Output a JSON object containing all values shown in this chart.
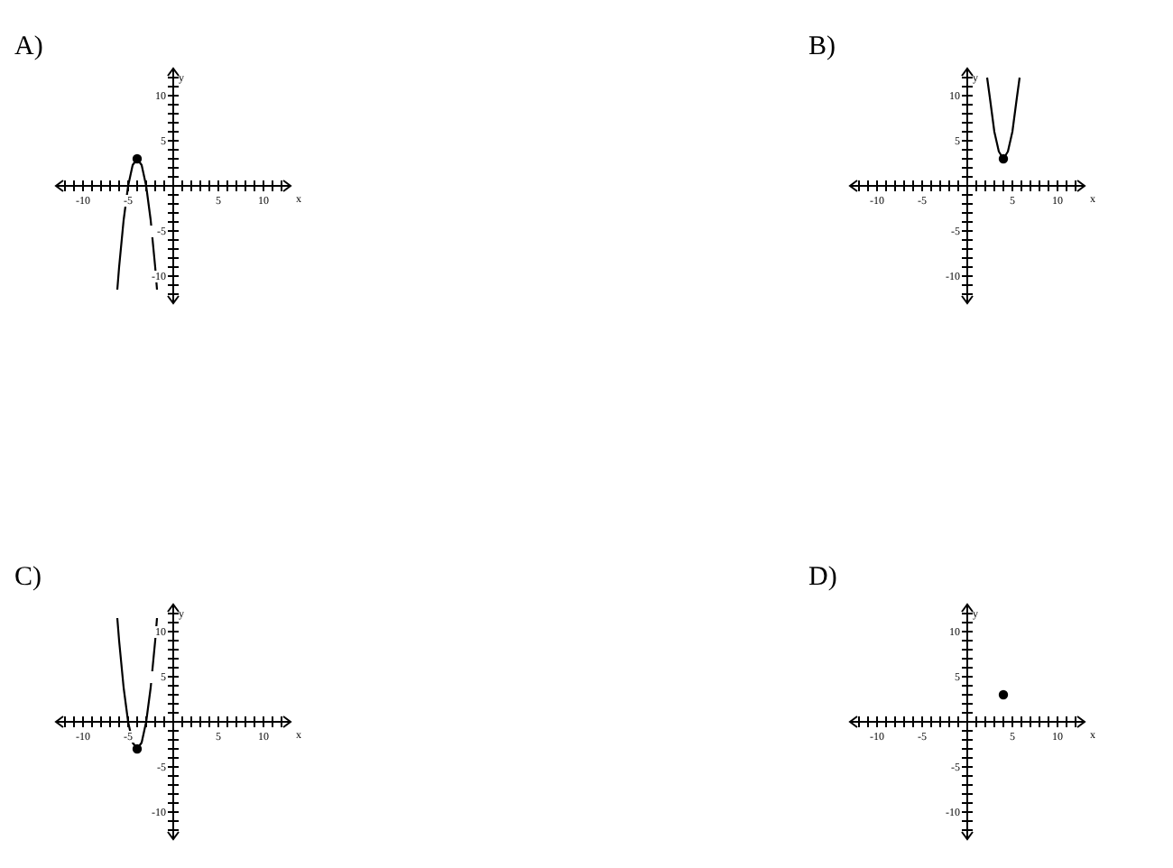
{
  "chart_data": [
    {
      "type": "line",
      "title": "A)",
      "xlabel": "x",
      "ylabel": "y",
      "xlim": [
        -13,
        13
      ],
      "ylim": [
        -13,
        13
      ],
      "xticks": [
        {
          "value": -12,
          "label": null
        },
        {
          "value": -11,
          "label": null
        },
        -10,
        {
          "value": -9,
          "label": null
        },
        {
          "value": -8,
          "label": null
        },
        {
          "value": -7,
          "label": null
        },
        {
          "value": -6,
          "label": null
        },
        -5,
        {
          "value": -4,
          "label": null
        },
        {
          "value": -3,
          "label": null
        },
        {
          "value": -2,
          "label": null
        },
        {
          "value": -1,
          "label": null
        },
        {
          "value": 1,
          "label": null
        },
        {
          "value": 2,
          "label": null
        },
        {
          "value": 3,
          "label": null
        },
        {
          "value": 4,
          "label": null
        },
        5,
        {
          "value": 6,
          "label": null
        },
        {
          "value": 7,
          "label": null
        },
        {
          "value": 8,
          "label": null
        },
        {
          "value": 9,
          "label": null
        },
        10,
        {
          "value": 11,
          "label": null
        },
        {
          "value": 12,
          "label": null
        }
      ],
      "yticks": [
        {
          "value": -12,
          "label": null
        },
        {
          "value": -11,
          "label": null
        },
        -10,
        {
          "value": -9,
          "label": null
        },
        {
          "value": -8,
          "label": null
        },
        {
          "value": -7,
          "label": null
        },
        {
          "value": -6,
          "label": null
        },
        -5,
        {
          "value": -4,
          "label": null
        },
        {
          "value": -3,
          "label": null
        },
        {
          "value": -2,
          "label": null
        },
        {
          "value": -1,
          "label": null
        },
        {
          "value": 1,
          "label": null
        },
        {
          "value": 2,
          "label": null
        },
        {
          "value": 3,
          "label": null
        },
        {
          "value": 4,
          "label": null
        },
        5,
        {
          "value": 6,
          "label": null
        },
        {
          "value": 7,
          "label": null
        },
        {
          "value": 8,
          "label": null
        },
        {
          "value": 9,
          "label": null
        },
        10,
        {
          "value": 11,
          "label": null
        },
        {
          "value": 12,
          "label": null
        }
      ],
      "series": [
        {
          "marker": "none",
          "color": "#000000",
          "x": [
            -6.2,
            -6,
            -5.5,
            -5,
            -4.5,
            -4,
            -3.5,
            -3,
            -2.5,
            -2,
            -1.8
          ],
          "values": [
            -11.5,
            -9,
            -3.8,
            0,
            2.3,
            3,
            2.3,
            0,
            -3.8,
            -9,
            -11.5
          ]
        },
        {
          "type": "scatter",
          "marker": "circle",
          "color": "#000000",
          "x": [
            -4
          ],
          "values": [
            3
          ]
        }
      ]
    },
    {
      "type": "line",
      "title": "B)",
      "xlabel": "x",
      "ylabel": "y",
      "xlim": [
        -13,
        13
      ],
      "ylim": [
        -13,
        13
      ],
      "xticks": [
        {
          "value": -12,
          "label": null
        },
        {
          "value": -11,
          "label": null
        },
        -10,
        {
          "value": -9,
          "label": null
        },
        {
          "value": -8,
          "label": null
        },
        {
          "value": -7,
          "label": null
        },
        {
          "value": -6,
          "label": null
        },
        -5,
        {
          "value": -4,
          "label": null
        },
        {
          "value": -3,
          "label": null
        },
        {
          "value": -2,
          "label": null
        },
        {
          "value": -1,
          "label": null
        },
        {
          "value": 1,
          "label": null
        },
        {
          "value": 2,
          "label": null
        },
        {
          "value": 3,
          "label": null
        },
        {
          "value": 4,
          "label": null
        },
        5,
        {
          "value": 6,
          "label": null
        },
        {
          "value": 7,
          "label": null
        },
        {
          "value": 8,
          "label": null
        },
        {
          "value": 9,
          "label": null
        },
        10,
        {
          "value": 11,
          "label": null
        },
        {
          "value": 12,
          "label": null
        }
      ],
      "yticks": [
        {
          "value": -12,
          "label": null
        },
        {
          "value": -11,
          "label": null
        },
        -10,
        {
          "value": -9,
          "label": null
        },
        {
          "value": -8,
          "label": null
        },
        {
          "value": -7,
          "label": null
        },
        {
          "value": -6,
          "label": null
        },
        -5,
        {
          "value": -4,
          "label": null
        },
        {
          "value": -3,
          "label": null
        },
        {
          "value": -2,
          "label": null
        },
        {
          "value": -1,
          "label": null
        },
        {
          "value": 1,
          "label": null
        },
        {
          "value": 2,
          "label": null
        },
        {
          "value": 3,
          "label": null
        },
        {
          "value": 4,
          "label": null
        },
        5,
        {
          "value": 6,
          "label": null
        },
        {
          "value": 7,
          "label": null
        },
        {
          "value": 8,
          "label": null
        },
        {
          "value": 9,
          "label": null
        },
        10,
        {
          "value": 11,
          "label": null
        },
        {
          "value": 12,
          "label": null
        }
      ],
      "series": [
        {
          "marker": "none",
          "color": "#000000",
          "x": [
            2.2,
            2.5,
            3,
            3.5,
            4,
            4.5,
            5,
            5.5,
            5.8
          ],
          "values": [
            12,
            9.8,
            6,
            3.8,
            3,
            3.8,
            6,
            9.8,
            12
          ]
        },
        {
          "type": "scatter",
          "marker": "circle",
          "color": "#000000",
          "x": [
            4
          ],
          "values": [
            3
          ]
        }
      ]
    },
    {
      "type": "line",
      "title": "C)",
      "xlabel": "x",
      "ylabel": "y",
      "xlim": [
        -13,
        13
      ],
      "ylim": [
        -13,
        13
      ],
      "xticks": [
        {
          "value": -12,
          "label": null
        },
        {
          "value": -11,
          "label": null
        },
        -10,
        {
          "value": -9,
          "label": null
        },
        {
          "value": -8,
          "label": null
        },
        {
          "value": -7,
          "label": null
        },
        {
          "value": -6,
          "label": null
        },
        -5,
        {
          "value": -4,
          "label": null
        },
        {
          "value": -3,
          "label": null
        },
        {
          "value": -2,
          "label": null
        },
        {
          "value": -1,
          "label": null
        },
        {
          "value": 1,
          "label": null
        },
        {
          "value": 2,
          "label": null
        },
        {
          "value": 3,
          "label": null
        },
        {
          "value": 4,
          "label": null
        },
        5,
        {
          "value": 6,
          "label": null
        },
        {
          "value": 7,
          "label": null
        },
        {
          "value": 8,
          "label": null
        },
        {
          "value": 9,
          "label": null
        },
        10,
        {
          "value": 11,
          "label": null
        },
        {
          "value": 12,
          "label": null
        }
      ],
      "yticks": [
        {
          "value": -12,
          "label": null
        },
        {
          "value": -11,
          "label": null
        },
        -10,
        {
          "value": -9,
          "label": null
        },
        {
          "value": -8,
          "label": null
        },
        {
          "value": -7,
          "label": null
        },
        {
          "value": -6,
          "label": null
        },
        -5,
        {
          "value": -4,
          "label": null
        },
        {
          "value": -3,
          "label": null
        },
        {
          "value": -2,
          "label": null
        },
        {
          "value": -1,
          "label": null
        },
        {
          "value": 1,
          "label": null
        },
        {
          "value": 2,
          "label": null
        },
        {
          "value": 3,
          "label": null
        },
        {
          "value": 4,
          "label": null
        },
        5,
        {
          "value": 6,
          "label": null
        },
        {
          "value": 7,
          "label": null
        },
        {
          "value": 8,
          "label": null
        },
        {
          "value": 9,
          "label": null
        },
        10,
        {
          "value": 11,
          "label": null
        },
        {
          "value": 12,
          "label": null
        }
      ],
      "series": [
        {
          "marker": "none",
          "color": "#000000",
          "x": [
            -6.2,
            -6,
            -5.5,
            -5,
            -4.5,
            -4,
            -3.5,
            -3,
            -2.5,
            -2,
            -1.8
          ],
          "values": [
            11.5,
            9,
            3.8,
            0,
            -2.3,
            -3,
            -2.3,
            0,
            3.8,
            9,
            11.5
          ]
        },
        {
          "type": "scatter",
          "marker": "circle",
          "color": "#000000",
          "x": [
            -4
          ],
          "values": [
            -3
          ]
        }
      ]
    },
    {
      "type": "scatter",
      "title": "D)",
      "xlabel": "x",
      "ylabel": "y",
      "xlim": [
        -13,
        13
      ],
      "ylim": [
        -13,
        13
      ],
      "xticks": [
        {
          "value": -12,
          "label": null
        },
        {
          "value": -11,
          "label": null
        },
        -10,
        {
          "value": -9,
          "label": null
        },
        {
          "value": -8,
          "label": null
        },
        {
          "value": -7,
          "label": null
        },
        {
          "value": -6,
          "label": null
        },
        -5,
        {
          "value": -4,
          "label": null
        },
        {
          "value": -3,
          "label": null
        },
        {
          "value": -2,
          "label": null
        },
        {
          "value": -1,
          "label": null
        },
        {
          "value": 1,
          "label": null
        },
        {
          "value": 2,
          "label": null
        },
        {
          "value": 3,
          "label": null
        },
        {
          "value": 4,
          "label": null
        },
        5,
        {
          "value": 6,
          "label": null
        },
        {
          "value": 7,
          "label": null
        },
        {
          "value": 8,
          "label": null
        },
        {
          "value": 9,
          "label": null
        },
        10,
        {
          "value": 11,
          "label": null
        },
        {
          "value": 12,
          "label": null
        }
      ],
      "yticks": [
        {
          "value": -12,
          "label": null
        },
        {
          "value": -11,
          "label": null
        },
        -10,
        {
          "value": -9,
          "label": null
        },
        {
          "value": -8,
          "label": null
        },
        {
          "value": -7,
          "label": null
        },
        {
          "value": -6,
          "label": null
        },
        -5,
        {
          "value": -4,
          "label": null
        },
        {
          "value": -3,
          "label": null
        },
        {
          "value": -2,
          "label": null
        },
        {
          "value": -1,
          "label": null
        },
        {
          "value": 1,
          "label": null
        },
        {
          "value": 2,
          "label": null
        },
        {
          "value": 3,
          "label": null
        },
        {
          "value": 4,
          "label": null
        },
        5,
        {
          "value": 6,
          "label": null
        },
        {
          "value": 7,
          "label": null
        },
        {
          "value": 8,
          "label": null
        },
        {
          "value": 9,
          "label": null
        },
        10,
        {
          "value": 11,
          "label": null
        },
        {
          "value": 12,
          "label": null
        }
      ],
      "series": [
        {
          "marker": "circle",
          "color": "#000000",
          "x": [
            4
          ],
          "values": [
            3
          ]
        }
      ]
    }
  ]
}
